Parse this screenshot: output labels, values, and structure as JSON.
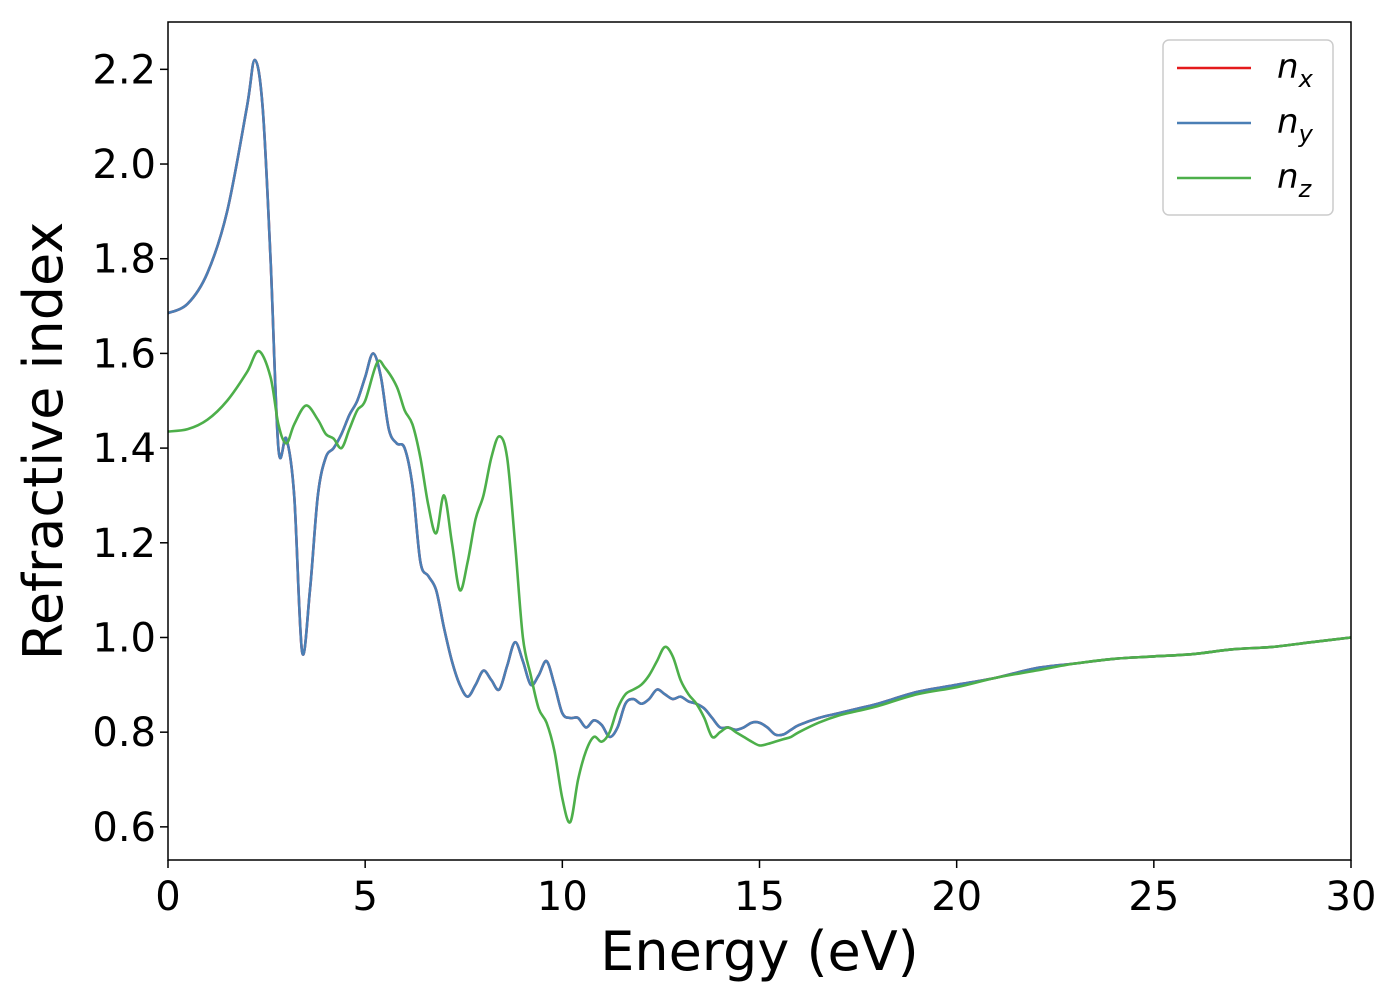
{
  "chart_data": {
    "type": "line",
    "xlabel": "Energy (eV)",
    "ylabel": "Refractive index",
    "xlim": [
      0,
      30
    ],
    "ylim": [
      0.53,
      2.3
    ],
    "xticks": [
      0,
      5,
      10,
      15,
      20,
      25,
      30
    ],
    "xtick_labels": [
      "0",
      "5",
      "10",
      "15",
      "20",
      "25",
      "30"
    ],
    "yticks": [
      0.6,
      0.8,
      1.0,
      1.2,
      1.4,
      1.6,
      1.8,
      2.0,
      2.2
    ],
    "ytick_labels": [
      "0.6",
      "0.8",
      "1.0",
      "1.2",
      "1.4",
      "1.6",
      "1.8",
      "2.0",
      "2.2"
    ],
    "grid": false,
    "legend_position": "top-right",
    "series": [
      {
        "name": "n",
        "subscript": "x",
        "color": "#e41a1c",
        "x": [
          0,
          0.5,
          1.0,
          1.5,
          2.0,
          2.2,
          2.4,
          2.6,
          2.8,
          3.0,
          3.2,
          3.4,
          3.6,
          3.8,
          4.0,
          4.2,
          4.4,
          4.6,
          4.8,
          5.0,
          5.2,
          5.4,
          5.6,
          5.8,
          6.0,
          6.2,
          6.4,
          6.6,
          6.8,
          7.0,
          7.2,
          7.4,
          7.6,
          7.8,
          8.0,
          8.2,
          8.4,
          8.6,
          8.8,
          9.0,
          9.2,
          9.4,
          9.6,
          9.8,
          10.0,
          10.2,
          10.4,
          10.6,
          10.8,
          11.0,
          11.2,
          11.4,
          11.6,
          11.8,
          12.0,
          12.2,
          12.4,
          12.6,
          12.8,
          13.0,
          13.2,
          13.4,
          13.6,
          13.8,
          14.0,
          14.2,
          14.4,
          14.6,
          14.8,
          15.0,
          15.2,
          15.4,
          15.6,
          15.8,
          16.0,
          16.5,
          17.0,
          17.5,
          18.0,
          19.0,
          20.0,
          21.0,
          22.0,
          23.0,
          24.0,
          25.0,
          26.0,
          27.0,
          28.0,
          29.0,
          30.0
        ],
        "y": [
          1.685,
          1.705,
          1.77,
          1.9,
          2.12,
          2.22,
          2.12,
          1.8,
          1.4,
          1.42,
          1.3,
          0.97,
          1.1,
          1.3,
          1.38,
          1.4,
          1.43,
          1.47,
          1.5,
          1.55,
          1.6,
          1.55,
          1.44,
          1.41,
          1.4,
          1.32,
          1.16,
          1.13,
          1.1,
          1.02,
          0.95,
          0.9,
          0.875,
          0.9,
          0.93,
          0.91,
          0.89,
          0.94,
          0.99,
          0.95,
          0.9,
          0.92,
          0.95,
          0.9,
          0.84,
          0.83,
          0.83,
          0.81,
          0.825,
          0.815,
          0.79,
          0.81,
          0.86,
          0.87,
          0.86,
          0.87,
          0.89,
          0.88,
          0.87,
          0.875,
          0.865,
          0.86,
          0.85,
          0.83,
          0.81,
          0.81,
          0.805,
          0.81,
          0.82,
          0.82,
          0.81,
          0.795,
          0.795,
          0.805,
          0.815,
          0.83,
          0.84,
          0.85,
          0.86,
          0.885,
          0.9,
          0.915,
          0.935,
          0.945,
          0.955,
          0.96,
          0.965,
          0.975,
          0.98,
          0.99,
          1.0
        ]
      },
      {
        "name": "n",
        "subscript": "y",
        "color": "#4a7fb5",
        "x": [
          0,
          0.5,
          1.0,
          1.5,
          2.0,
          2.2,
          2.4,
          2.6,
          2.8,
          3.0,
          3.2,
          3.4,
          3.6,
          3.8,
          4.0,
          4.2,
          4.4,
          4.6,
          4.8,
          5.0,
          5.2,
          5.4,
          5.6,
          5.8,
          6.0,
          6.2,
          6.4,
          6.6,
          6.8,
          7.0,
          7.2,
          7.4,
          7.6,
          7.8,
          8.0,
          8.2,
          8.4,
          8.6,
          8.8,
          9.0,
          9.2,
          9.4,
          9.6,
          9.8,
          10.0,
          10.2,
          10.4,
          10.6,
          10.8,
          11.0,
          11.2,
          11.4,
          11.6,
          11.8,
          12.0,
          12.2,
          12.4,
          12.6,
          12.8,
          13.0,
          13.2,
          13.4,
          13.6,
          13.8,
          14.0,
          14.2,
          14.4,
          14.6,
          14.8,
          15.0,
          15.2,
          15.4,
          15.6,
          15.8,
          16.0,
          16.5,
          17.0,
          17.5,
          18.0,
          19.0,
          20.0,
          21.0,
          22.0,
          23.0,
          24.0,
          25.0,
          26.0,
          27.0,
          28.0,
          29.0,
          30.0
        ],
        "y": [
          1.685,
          1.705,
          1.77,
          1.9,
          2.12,
          2.22,
          2.12,
          1.8,
          1.4,
          1.42,
          1.3,
          0.97,
          1.1,
          1.3,
          1.38,
          1.4,
          1.43,
          1.47,
          1.5,
          1.55,
          1.6,
          1.55,
          1.44,
          1.41,
          1.4,
          1.32,
          1.16,
          1.13,
          1.1,
          1.02,
          0.95,
          0.9,
          0.875,
          0.9,
          0.93,
          0.91,
          0.89,
          0.94,
          0.99,
          0.95,
          0.9,
          0.92,
          0.95,
          0.9,
          0.84,
          0.83,
          0.83,
          0.81,
          0.825,
          0.815,
          0.79,
          0.81,
          0.86,
          0.87,
          0.86,
          0.87,
          0.89,
          0.88,
          0.87,
          0.875,
          0.865,
          0.86,
          0.85,
          0.83,
          0.81,
          0.81,
          0.805,
          0.81,
          0.82,
          0.82,
          0.81,
          0.795,
          0.795,
          0.805,
          0.815,
          0.83,
          0.84,
          0.85,
          0.86,
          0.885,
          0.9,
          0.915,
          0.935,
          0.945,
          0.955,
          0.96,
          0.965,
          0.975,
          0.98,
          0.99,
          1.0
        ]
      },
      {
        "name": "n",
        "subscript": "z",
        "color": "#4daf4a",
        "x": [
          0,
          0.5,
          1.0,
          1.5,
          2.0,
          2.3,
          2.6,
          2.8,
          3.0,
          3.2,
          3.5,
          3.8,
          4.0,
          4.2,
          4.4,
          4.6,
          4.8,
          5.0,
          5.3,
          5.5,
          5.8,
          6.0,
          6.2,
          6.4,
          6.6,
          6.8,
          7.0,
          7.2,
          7.4,
          7.6,
          7.8,
          8.0,
          8.2,
          8.4,
          8.6,
          8.8,
          9.0,
          9.2,
          9.4,
          9.6,
          9.8,
          10.0,
          10.2,
          10.4,
          10.6,
          10.8,
          11.0,
          11.2,
          11.4,
          11.6,
          11.8,
          12.0,
          12.2,
          12.4,
          12.6,
          12.8,
          13.0,
          13.2,
          13.4,
          13.6,
          13.8,
          14.0,
          14.2,
          14.4,
          14.6,
          14.8,
          15.0,
          15.2,
          15.4,
          15.6,
          15.8,
          16.0,
          16.5,
          17.0,
          17.5,
          18.0,
          19.0,
          20.0,
          21.0,
          22.0,
          23.0,
          24.0,
          25.0,
          26.0,
          27.0,
          28.0,
          29.0,
          30.0
        ],
        "y": [
          1.435,
          1.44,
          1.46,
          1.5,
          1.56,
          1.605,
          1.55,
          1.45,
          1.41,
          1.45,
          1.49,
          1.46,
          1.43,
          1.42,
          1.4,
          1.44,
          1.48,
          1.5,
          1.58,
          1.57,
          1.53,
          1.48,
          1.45,
          1.38,
          1.28,
          1.22,
          1.3,
          1.2,
          1.1,
          1.16,
          1.25,
          1.3,
          1.38,
          1.425,
          1.38,
          1.2,
          1.0,
          0.92,
          0.85,
          0.82,
          0.76,
          0.66,
          0.61,
          0.7,
          0.76,
          0.79,
          0.78,
          0.8,
          0.85,
          0.88,
          0.89,
          0.9,
          0.92,
          0.95,
          0.98,
          0.96,
          0.91,
          0.88,
          0.86,
          0.83,
          0.79,
          0.8,
          0.81,
          0.8,
          0.79,
          0.78,
          0.772,
          0.775,
          0.78,
          0.785,
          0.79,
          0.8,
          0.82,
          0.835,
          0.845,
          0.855,
          0.88,
          0.895,
          0.915,
          0.93,
          0.945,
          0.955,
          0.96,
          0.965,
          0.975,
          0.98,
          0.99,
          1.0
        ]
      }
    ]
  }
}
